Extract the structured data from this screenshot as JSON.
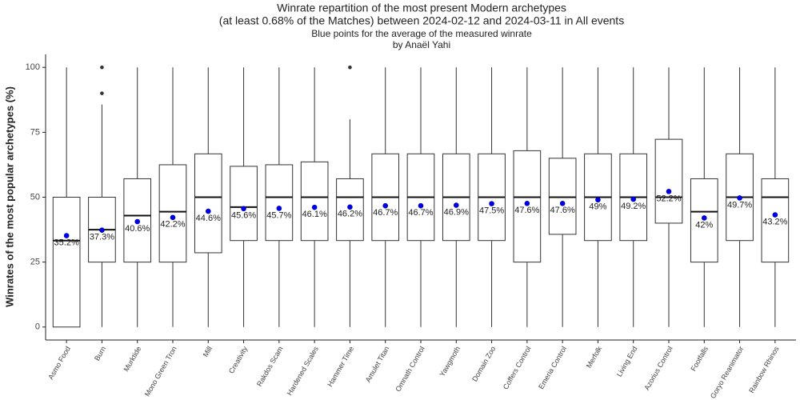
{
  "chart_data": {
    "type": "box",
    "title": [
      "Winrate repartition of the most present Modern archetypes",
      "(at least 0.68% of the Matches) between 2024-02-12 and 2024-03-11 in All events"
    ],
    "subtitle": [
      "Blue points for the average of the measured winrate",
      "by Anaël Yahi"
    ],
    "y_label": "Winrates of the most popular archetypes (%)",
    "categories": [
      "Asmo Food",
      "Burn",
      "Murktide",
      "Mono Green Tron",
      "Mill",
      "Creativity",
      "Rakdos Scam",
      "Hardened Scales",
      "Hammer Time",
      "Amulet Titan",
      "Omnath Control",
      "Yawgmoth",
      "Domain Zoo",
      "Coffers Control",
      "Emeria Control",
      "Merfolk",
      "Living End",
      "Azorius Control",
      "Footfalls",
      "Goryo Reanimator",
      "Rainbow Rhinos"
    ],
    "whisker_low": [
      0,
      0,
      0,
      0,
      0,
      0,
      0,
      0,
      0,
      0,
      0,
      0,
      0,
      0,
      0,
      0,
      0,
      0,
      0,
      0,
      0
    ],
    "q1": [
      0,
      25,
      25,
      25,
      28.6,
      33.3,
      33.3,
      33.3,
      33.3,
      33.3,
      33.3,
      33.3,
      33.3,
      25,
      35.7,
      33.3,
      33.3,
      40,
      25,
      33.3,
      25
    ],
    "median": [
      33.3,
      37.5,
      42.9,
      44.4,
      50,
      46.2,
      50,
      50,
      50,
      50,
      50,
      50,
      50,
      50,
      50,
      50,
      50,
      50,
      44.4,
      50,
      50
    ],
    "q3": [
      50,
      50,
      57.1,
      62.5,
      66.7,
      61.9,
      62.5,
      63.6,
      57.1,
      66.7,
      66.7,
      66.7,
      66.7,
      67.9,
      65,
      66.7,
      66.7,
      72.3,
      57.1,
      66.7,
      57.1
    ],
    "whisker_high": [
      100,
      85.7,
      100,
      100,
      100,
      100,
      100,
      100,
      80,
      100,
      100,
      100,
      100,
      100,
      100,
      100,
      100,
      100,
      100,
      100,
      100
    ],
    "outliers": [
      [],
      [
        90,
        100
      ],
      [],
      [],
      [],
      [],
      [],
      [],
      [
        100
      ],
      [],
      [],
      [],
      [],
      [],
      [],
      [],
      [],
      [],
      [],
      [],
      []
    ],
    "means": [
      35.2,
      37.3,
      40.6,
      42.2,
      44.6,
      45.6,
      45.7,
      46.1,
      46.2,
      46.7,
      46.7,
      46.9,
      47.5,
      47.6,
      47.6,
      49,
      49.2,
      52.2,
      42,
      49.7,
      43.2
    ],
    "value_labels": [
      "35.2%",
      "37.3%",
      "40.6%",
      "42.2%",
      "44.6%",
      "45.6%",
      "45.7%",
      "46.1%",
      "46.2%",
      "46.7%",
      "46.7%",
      "46.9%",
      "47.5%",
      "47.6%",
      "47.6%",
      "49%",
      "49.2%",
      "52.2%",
      "42%",
      "49.7%",
      "43.2%"
    ],
    "mean_color": "#0000dd",
    "box_color": "#333333",
    "outlier_color": "#333333",
    "ylim": [
      -5,
      105
    ],
    "yticks": [
      0,
      25,
      50,
      75,
      100
    ]
  }
}
